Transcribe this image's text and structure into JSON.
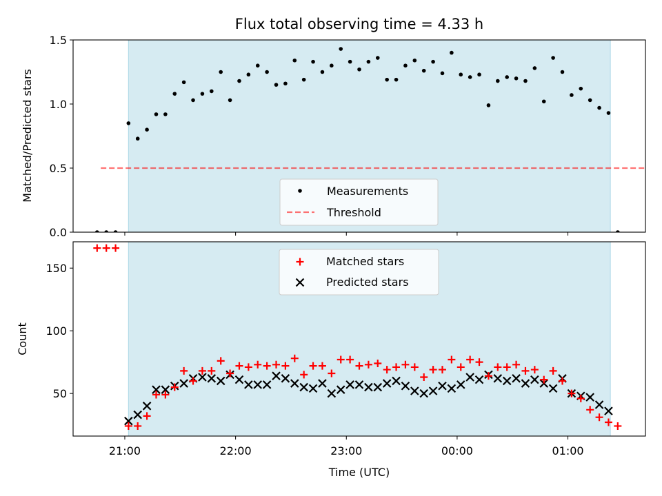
{
  "title": "Flux total observing time = 4.33 h",
  "colors": {
    "shade": "#add8e6",
    "measure": "#000000",
    "threshold": "#ff0000",
    "matched": "#ff0000",
    "predicted": "#000000"
  },
  "chart_data": [
    {
      "type": "scatter",
      "ylabel": "Matched/Predicted stars",
      "xlim": [
        "20:32",
        "01:42"
      ],
      "ylim": [
        0,
        1.5
      ],
      "yticks": [
        0,
        0.5,
        1.0,
        1.5
      ],
      "ytick_labels": [
        "0.0",
        "0.5",
        "1.0",
        "1.5"
      ],
      "legend": [
        "Measurements",
        "Threshold"
      ],
      "legend_loc": "lower center",
      "observing_window": [
        "21:02",
        "01:23"
      ],
      "threshold": {
        "value": 0.5,
        "x": [
          "20:47",
          "01:50"
        ]
      },
      "x": [
        "20:45",
        "20:50",
        "20:55",
        "21:02",
        "21:07",
        "21:12",
        "21:17",
        "21:22",
        "21:27",
        "21:32",
        "21:37",
        "21:42",
        "21:47",
        "21:52",
        "21:57",
        "22:02",
        "22:07",
        "22:12",
        "22:17",
        "22:22",
        "22:27",
        "22:32",
        "22:37",
        "22:42",
        "22:47",
        "22:52",
        "22:57",
        "23:02",
        "23:07",
        "23:12",
        "23:17",
        "23:22",
        "23:27",
        "23:32",
        "23:37",
        "23:42",
        "23:47",
        "23:52",
        "23:57",
        "00:02",
        "00:07",
        "00:12",
        "00:17",
        "00:22",
        "00:27",
        "00:32",
        "00:37",
        "00:42",
        "00:47",
        "00:52",
        "00:57",
        "01:02",
        "01:07",
        "01:12",
        "01:17",
        "01:22",
        "01:27"
      ],
      "values": [
        0,
        0,
        0,
        0.85,
        0.73,
        0.8,
        0.92,
        0.92,
        1.08,
        1.17,
        1.03,
        1.08,
        1.1,
        1.25,
        1.03,
        1.18,
        1.23,
        1.3,
        1.25,
        1.15,
        1.16,
        1.34,
        1.19,
        1.33,
        1.25,
        1.3,
        1.43,
        1.33,
        1.27,
        1.33,
        1.36,
        1.19,
        1.19,
        1.3,
        1.34,
        1.26,
        1.33,
        1.24,
        1.4,
        1.23,
        1.21,
        1.23,
        0.99,
        1.18,
        1.21,
        1.2,
        1.18,
        1.28,
        1.02,
        1.36,
        1.25,
        1.07,
        1.12,
        1.03,
        0.97,
        0.93,
        0
      ]
    },
    {
      "type": "scatter",
      "xlabel": "Time (UTC)",
      "ylabel": "Count",
      "xlim": [
        "20:32",
        "01:42"
      ],
      "ylim": [
        16,
        171
      ],
      "yticks": [
        50,
        100,
        150
      ],
      "ytick_labels": [
        "50",
        "100",
        "150"
      ],
      "xticks": [
        "21:00",
        "22:00",
        "23:00",
        "00:00",
        "01:00"
      ],
      "legend": [
        "Matched stars",
        "Predicted stars"
      ],
      "legend_loc": "upper center",
      "observing_window": [
        "21:02",
        "01:23"
      ],
      "series": [
        {
          "name": "Matched stars",
          "x": [
            "20:45",
            "20:50",
            "20:55",
            "21:02",
            "21:07",
            "21:12",
            "21:17",
            "21:22",
            "21:27",
            "21:32",
            "21:37",
            "21:42",
            "21:47",
            "21:52",
            "21:57",
            "22:02",
            "22:07",
            "22:12",
            "22:17",
            "22:22",
            "22:27",
            "22:32",
            "22:37",
            "22:42",
            "22:47",
            "22:52",
            "22:57",
            "23:02",
            "23:07",
            "23:12",
            "23:17",
            "23:22",
            "23:27",
            "23:32",
            "23:37",
            "23:42",
            "23:47",
            "23:52",
            "23:57",
            "00:02",
            "00:07",
            "00:12",
            "00:17",
            "00:22",
            "00:27",
            "00:32",
            "00:37",
            "00:42",
            "00:47",
            "00:52",
            "00:57",
            "01:02",
            "01:07",
            "01:12",
            "01:17",
            "01:22",
            "01:27"
          ],
          "values": [
            166,
            166,
            166,
            24,
            24,
            32,
            49,
            49,
            55,
            68,
            60,
            68,
            68,
            76,
            66,
            72,
            71,
            73,
            72,
            73,
            72,
            78,
            65,
            72,
            72,
            66,
            77,
            77,
            72,
            73,
            74,
            69,
            71,
            73,
            71,
            63,
            69,
            69,
            77,
            71,
            77,
            75,
            64,
            71,
            71,
            73,
            68,
            69,
            61,
            68,
            60,
            50,
            46,
            37,
            31,
            27,
            24
          ]
        },
        {
          "name": "Predicted stars",
          "x": [
            "21:02",
            "21:07",
            "21:12",
            "21:17",
            "21:22",
            "21:27",
            "21:32",
            "21:37",
            "21:42",
            "21:47",
            "21:52",
            "21:57",
            "22:02",
            "22:07",
            "22:12",
            "22:17",
            "22:22",
            "22:27",
            "22:32",
            "22:37",
            "22:42",
            "22:47",
            "22:52",
            "22:57",
            "23:02",
            "23:07",
            "23:12",
            "23:17",
            "23:22",
            "23:27",
            "23:32",
            "23:37",
            "23:42",
            "23:47",
            "23:52",
            "23:57",
            "00:02",
            "00:07",
            "00:12",
            "00:17",
            "00:22",
            "00:27",
            "00:32",
            "00:37",
            "00:42",
            "00:47",
            "00:52",
            "00:57",
            "01:02",
            "01:07",
            "01:12",
            "01:17",
            "01:22"
          ],
          "values": [
            28,
            33,
            40,
            53,
            53,
            56,
            58,
            62,
            63,
            62,
            60,
            65,
            61,
            57,
            57,
            57,
            64,
            62,
            58,
            55,
            54,
            58,
            50,
            53,
            57,
            57,
            55,
            55,
            58,
            60,
            56,
            52,
            50,
            52,
            56,
            54,
            57,
            63,
            61,
            65,
            62,
            60,
            62,
            58,
            61,
            58,
            54,
            62,
            50,
            48,
            47,
            41,
            36
          ]
        }
      ]
    }
  ]
}
